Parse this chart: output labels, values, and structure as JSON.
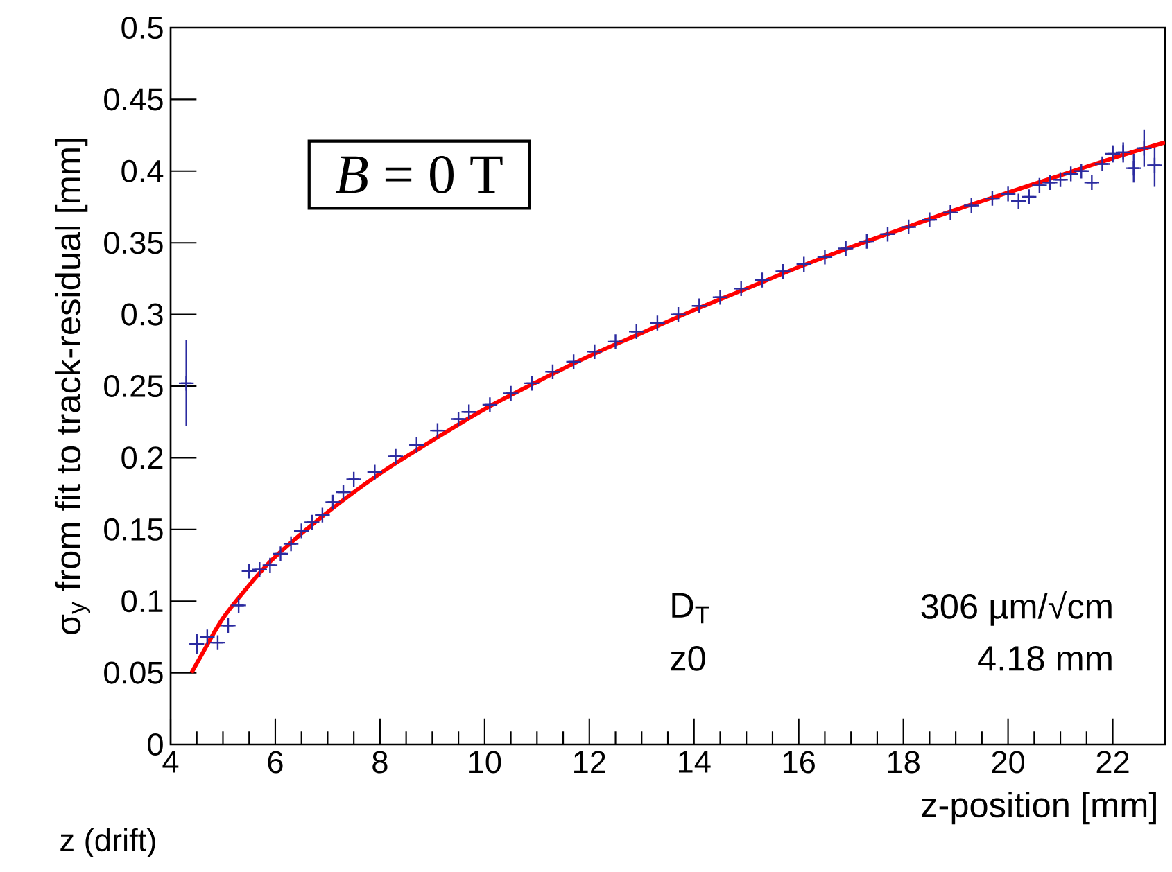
{
  "chart_data": {
    "type": "scatter",
    "xlabel": "z-position [mm]",
    "ylabel": "σ$_{y}$ from fit to track-residual [mm]",
    "xlim": [
      4,
      23
    ],
    "ylim": [
      0,
      0.5
    ],
    "xticks": [
      4,
      6,
      8,
      10,
      12,
      14,
      16,
      18,
      20,
      22
    ],
    "yticks": [
      0,
      0.05,
      0.1,
      0.15,
      0.2,
      0.25,
      0.3,
      0.35,
      0.4,
      0.45,
      0.5
    ],
    "marker": "cross",
    "annotations": [
      "*B* = 0  T",
      "D$_{T}$",
      "306 µm/√cm",
      "z0",
      "4.18 mm",
      "z (drift)"
    ],
    "series": [
      {
        "color": "#2b2ba0",
        "x": [
          4.3,
          4.5,
          4.7,
          4.9,
          5.1,
          5.3,
          5.5,
          5.7,
          5.9,
          6.1,
          6.3,
          6.5,
          6.7,
          6.9,
          7.1,
          7.3,
          7.5,
          7.9,
          8.3,
          8.7,
          9.1,
          9.5,
          9.7,
          10.1,
          10.5,
          10.9,
          11.3,
          11.7,
          12.1,
          12.5,
          12.9,
          13.3,
          13.7,
          14.1,
          14.5,
          14.9,
          15.3,
          15.7,
          16.1,
          16.5,
          16.9,
          17.3,
          17.7,
          18.1,
          18.5,
          18.9,
          19.3,
          19.7,
          20.0,
          20.2,
          20.4,
          20.6,
          20.8,
          21.0,
          21.2,
          21.4,
          21.6,
          21.8,
          22.0,
          22.2,
          22.4,
          22.6,
          22.8
        ],
        "values": [
          0.252,
          0.07,
          0.075,
          0.071,
          0.083,
          0.097,
          0.121,
          0.122,
          0.125,
          0.133,
          0.14,
          0.149,
          0.155,
          0.16,
          0.169,
          0.176,
          0.185,
          0.19,
          0.201,
          0.209,
          0.219,
          0.227,
          0.232,
          0.237,
          0.245,
          0.252,
          0.26,
          0.267,
          0.274,
          0.281,
          0.288,
          0.294,
          0.3,
          0.306,
          0.312,
          0.318,
          0.324,
          0.33,
          0.335,
          0.34,
          0.346,
          0.351,
          0.356,
          0.361,
          0.366,
          0.371,
          0.376,
          0.381,
          0.384,
          0.379,
          0.382,
          0.39,
          0.392,
          0.394,
          0.398,
          0.4,
          0.392,
          0.405,
          0.412,
          0.413,
          0.402,
          0.416,
          0.404
        ],
        "errors": [
          0.03,
          0.007,
          null,
          null,
          null,
          null,
          null,
          null,
          null,
          null,
          null,
          null,
          null,
          null,
          null,
          null,
          null,
          null,
          null,
          null,
          null,
          null,
          null,
          null,
          null,
          null,
          null,
          null,
          null,
          null,
          null,
          null,
          null,
          null,
          null,
          null,
          null,
          null,
          null,
          null,
          null,
          null,
          null,
          null,
          null,
          null,
          null,
          null,
          null,
          null,
          null,
          null,
          null,
          null,
          null,
          null,
          null,
          null,
          0.006,
          0.007,
          0.01,
          0.013,
          0.015
        ],
        "xerrors": [
          0.1,
          0.1,
          0.1,
          0.1,
          0.1,
          0.1,
          0.1,
          0.1,
          0.1,
          0.1,
          0.1,
          0.1,
          0.1,
          0.1,
          0.1,
          0.1,
          0.1,
          0.1,
          0.1,
          0.1,
          0.1,
          0.1,
          0.1,
          0.1,
          0.1,
          0.1,
          0.1,
          0.1,
          0.1,
          0.1,
          0.1,
          0.1,
          0.1,
          0.1,
          0.1,
          0.1,
          0.1,
          0.1,
          0.1,
          0.1,
          0.1,
          0.1,
          0.1,
          0.1,
          0.1,
          0.1,
          0.1,
          0.1,
          0.1,
          0.1,
          0.1,
          0.1,
          0.1,
          0.1,
          0.1,
          0.1,
          0.1,
          0.1,
          0.1,
          0.1,
          0.1,
          0.1,
          0.1
        ]
      },
      {
        "type": "line",
        "color": "#ff0000",
        "marker": "none",
        "x": [
          4.4,
          4.6,
          5,
          5.5,
          6,
          7,
          8,
          9,
          10,
          11,
          12,
          13,
          14,
          15,
          16,
          17,
          18,
          19,
          20,
          21,
          22,
          23
        ],
        "values": [
          0.05,
          0.063,
          0.088,
          0.111,
          0.131,
          0.162,
          0.189,
          0.212,
          0.234,
          0.253,
          0.271,
          0.287,
          0.303,
          0.318,
          0.333,
          0.347,
          0.36,
          0.373,
          0.385,
          0.397,
          0.409,
          0.42
        ]
      }
    ]
  }
}
